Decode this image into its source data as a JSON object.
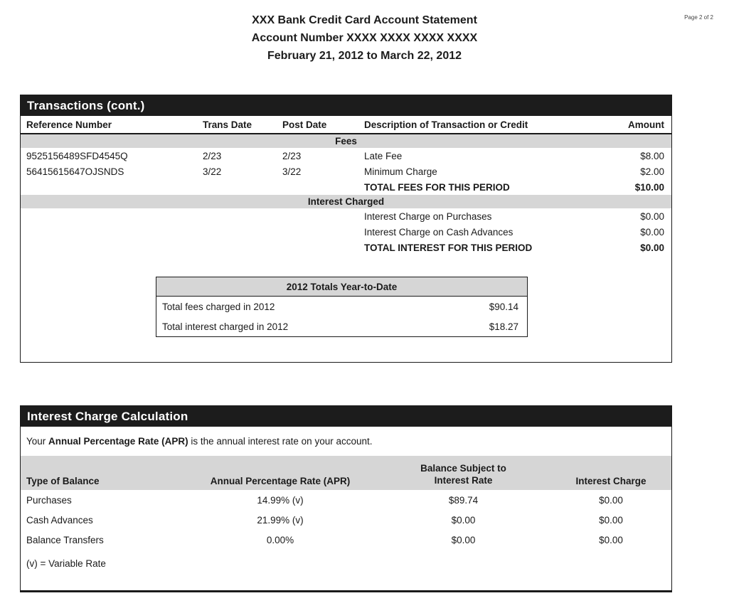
{
  "page": {
    "page_indicator": "Page 2 of 2"
  },
  "header": {
    "title": "XXX Bank Credit Card Account Statement",
    "account_line": "Account Number XXXX XXXX XXXX XXXX",
    "period": "February 21, 2012 to March 22, 2012"
  },
  "transactions": {
    "section_title": "Transactions (cont.)",
    "columns": {
      "reference": "Reference Number",
      "trans_date": "Trans Date",
      "post_date": "Post Date",
      "description": "Description of Transaction or Credit",
      "amount": "Amount"
    },
    "fees": {
      "group_label": "Fees",
      "rows": [
        {
          "reference": "9525156489SFD4545Q",
          "trans_date": "2/23",
          "post_date": "2/23",
          "description": "Late Fee",
          "amount": "$8.00"
        },
        {
          "reference": "56415615647OJSNDS",
          "trans_date": "3/22",
          "post_date": "3/22",
          "description": "Minimum Charge",
          "amount": "$2.00"
        }
      ],
      "total_label": "TOTAL FEES FOR THIS PERIOD",
      "total_amount": "$10.00"
    },
    "interest": {
      "group_label": "Interest Charged",
      "rows": [
        {
          "description": "Interest Charge on Purchases",
          "amount": "$0.00"
        },
        {
          "description": "Interest Charge on Cash Advances",
          "amount": "$0.00"
        }
      ],
      "total_label": "TOTAL INTEREST FOR THIS PERIOD",
      "total_amount": "$0.00"
    },
    "ytd": {
      "title": "2012 Totals Year-to-Date",
      "rows": [
        {
          "label": "Total fees charged in 2012",
          "amount": "$90.14"
        },
        {
          "label": "Total interest charged in 2012",
          "amount": "$18.27"
        }
      ]
    }
  },
  "interest_calc": {
    "section_title": "Interest Charge Calculation",
    "intro_prefix": "Your ",
    "intro_bold": "Annual Percentage Rate (APR)",
    "intro_suffix": " is the annual interest rate on your account.",
    "columns": {
      "type": "Type of Balance",
      "apr": "Annual Percentage Rate (APR)",
      "balance_line1": "Balance Subject to",
      "balance_line2": "Interest Rate",
      "charge": "Interest Charge"
    },
    "rows": [
      {
        "type": "Purchases",
        "apr": "14.99% (v)",
        "balance": "$89.74",
        "charge": "$0.00"
      },
      {
        "type": "Cash Advances",
        "apr": "21.99% (v)",
        "balance": "$0.00",
        "charge": "$0.00"
      },
      {
        "type": "Balance Transfers",
        "apr": "0.00%",
        "balance": "$0.00",
        "charge": "$0.00"
      }
    ],
    "footnote": "(v) = Variable Rate"
  },
  "colors": {
    "section_bar": "#1c1c1c",
    "group_band": "#d6d6d6",
    "text": "#1a1a1a",
    "border": "#1a1a1a",
    "background": "#ffffff"
  }
}
